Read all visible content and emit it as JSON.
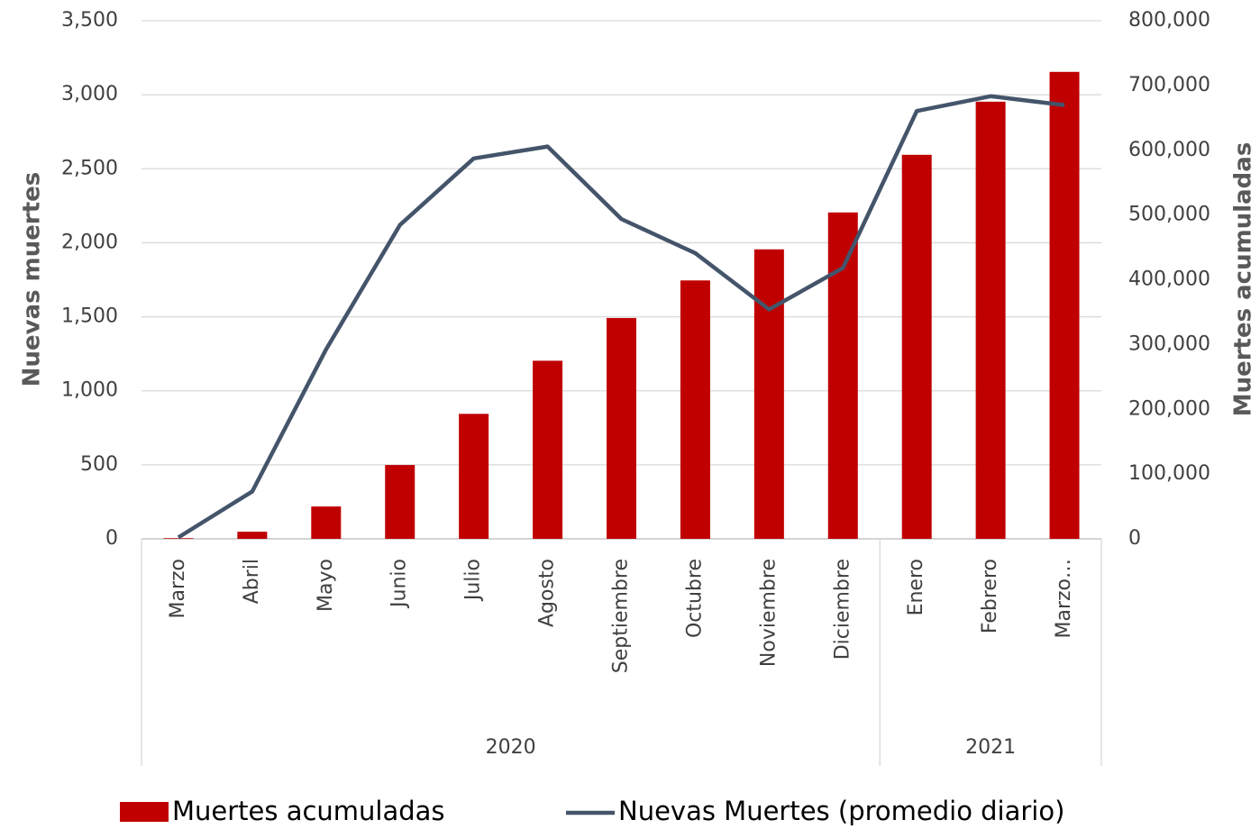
{
  "chart_data": {
    "type": "bar-line",
    "categories": [
      "Marzo",
      "Abril",
      "Mayo",
      "Junio",
      "Julio",
      "Agosto",
      "Septiembre",
      "Octubre",
      "Noviembre",
      "Diciembre",
      "Enero",
      "Febrero",
      "Marzo…"
    ],
    "groups": [
      {
        "label": "2020",
        "span": 10
      },
      {
        "label": "2021",
        "span": 3
      }
    ],
    "ylabel": "Nuevas muertes",
    "y2label": "Muertes acumuladas",
    "ylim": [
      0,
      3500
    ],
    "yticks": [
      0,
      500,
      {
        "value": 1000,
        "label": "1,000"
      },
      {
        "value": 1500,
        "label": "1,500"
      },
      {
        "value": 2000,
        "label": "2,000"
      },
      {
        "value": 2500,
        "label": "2,500"
      },
      {
        "value": 3000,
        "label": "3,000"
      },
      {
        "value": 3500,
        "label": "3,500"
      }
    ],
    "y2lim": [
      0,
      800000
    ],
    "y2ticks": [
      0,
      {
        "value": 100000,
        "label": "100,000"
      },
      {
        "value": 200000,
        "label": "200,000"
      },
      {
        "value": 300000,
        "label": "300,000"
      },
      {
        "value": 400000,
        "label": "400,000"
      },
      {
        "value": 500000,
        "label": "500,000"
      },
      {
        "value": 600000,
        "label": "600,000"
      },
      {
        "value": 700000,
        "label": "700,000"
      },
      {
        "value": 800000,
        "label": "800,000"
      }
    ],
    "grid": true,
    "legend": "bottom",
    "series": [
      {
        "name": "Muertes acumuladas",
        "type": "bar",
        "axis": "y2",
        "color": "#c00000",
        "values": [
          1000,
          11000,
          50000,
          114000,
          193000,
          275000,
          341000,
          399000,
          447000,
          504000,
          593000,
          675000,
          721000
        ]
      },
      {
        "name": "Nuevas Muertes (promedio diario)",
        "type": "line",
        "axis": "y",
        "color": "#44546a",
        "values": [
          10,
          320,
          1280,
          2120,
          2570,
          2650,
          2160,
          1930,
          1550,
          1830,
          2890,
          2990,
          2930
        ]
      }
    ]
  }
}
